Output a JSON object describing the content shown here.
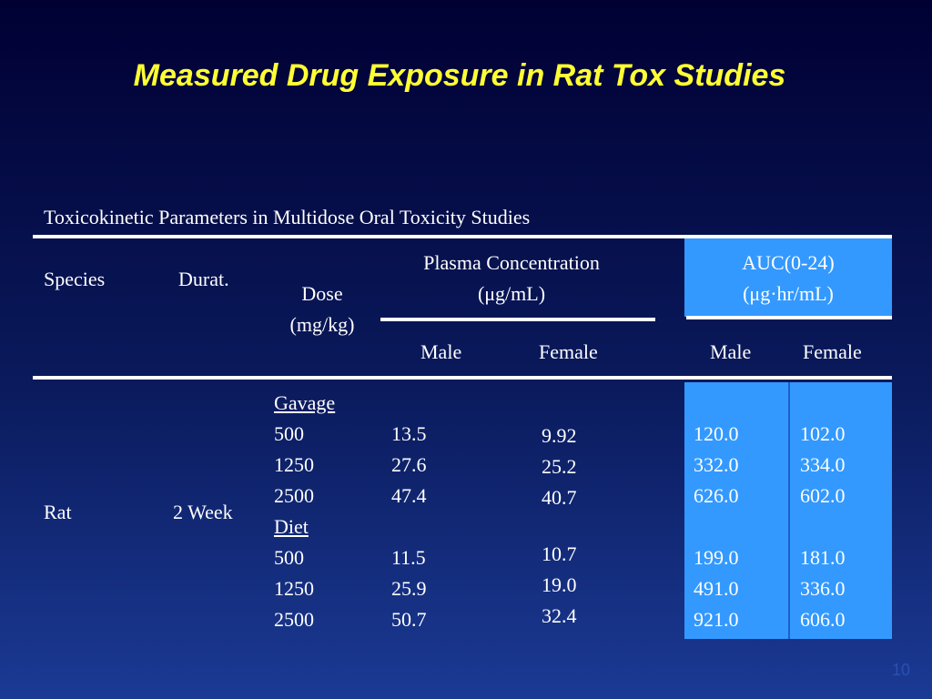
{
  "slide": {
    "title": "Measured Drug Exposure in Rat Tox Studies",
    "page_number": "10"
  },
  "table": {
    "caption": "Toxicokinetic Parameters in Multidose Oral Toxicity Studies",
    "headers": {
      "species": "Species",
      "duration": "Durat.",
      "dose_line1": "Dose",
      "dose_line2": "(mg/kg)",
      "plasma_line1": "Plasma Concentration",
      "plasma_line2": "(μg/mL)",
      "auc_line1": "AUC(0-24)",
      "auc_line2": "(μg·hr/mL)",
      "plasma_male": "Male",
      "plasma_female": "Female",
      "auc_male": "Male",
      "auc_female": "Female"
    },
    "row": {
      "species": "Rat",
      "duration": "2 Week"
    },
    "dose_column": [
      "Gavage",
      "500",
      "1250",
      "2500",
      "Diet",
      "500",
      "1250",
      "2500"
    ],
    "plasma_male": [
      "",
      "13.5",
      "27.6",
      "47.4",
      "",
      "11.5",
      "25.9",
      "50.7"
    ],
    "plasma_female_gavage": [
      "9.92",
      "25.2",
      "40.7"
    ],
    "plasma_female_diet": [
      "10.7",
      "19.0",
      "32.4"
    ],
    "auc_male": [
      "",
      "120.0",
      "332.0",
      "626.0",
      "",
      "199.0",
      "491.0",
      "921.0"
    ],
    "auc_female": [
      "",
      "102.0",
      "334.0",
      "602.0",
      "",
      "181.0",
      "336.0",
      "606.0"
    ]
  }
}
